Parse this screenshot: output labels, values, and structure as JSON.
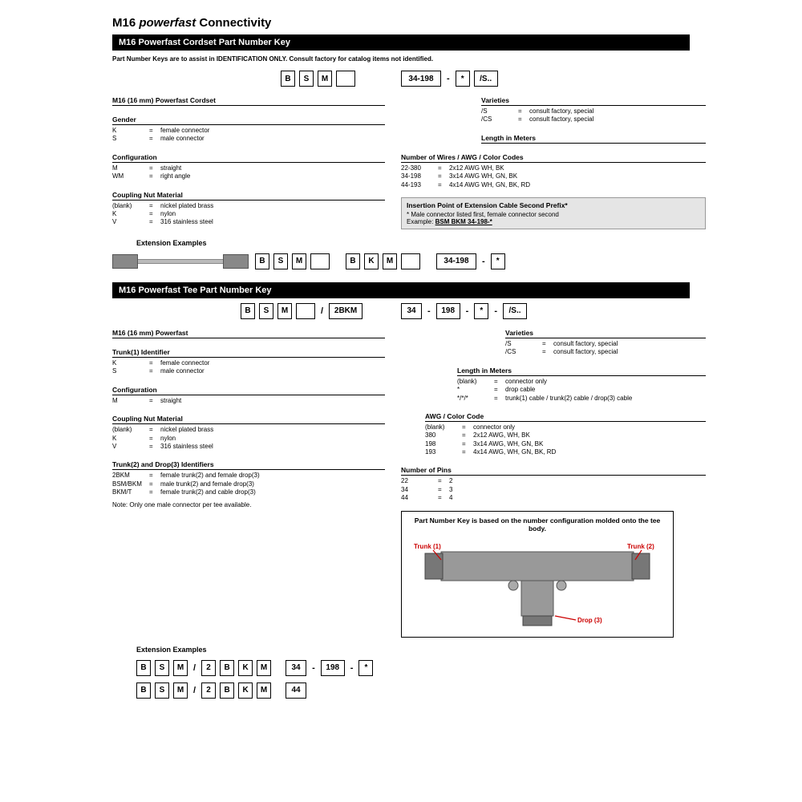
{
  "page_title_prefix": "M16 ",
  "page_title_italic": "powerfast",
  "page_title_suffix": " Connectivity",
  "section1": {
    "title": "M16 Powerfast Cordset Part Number Key",
    "note": "Part Number Keys are to assist in IDENTIFICATION ONLY. Consult factory for catalog items not identified.",
    "boxes": [
      "B",
      "S",
      "M",
      ""
    ],
    "box_mid": "34-198",
    "box_star": "*",
    "box_s": "/S..",
    "left_fields": [
      {
        "title": "M16 (16 mm) Powerfast Cordset",
        "rows": []
      },
      {
        "title": "Gender",
        "rows": [
          {
            "k": "K",
            "v": "female connector"
          },
          {
            "k": "S",
            "v": "male connector"
          }
        ]
      },
      {
        "title": "Configuration",
        "rows": [
          {
            "k": "M",
            "v": "straight"
          },
          {
            "k": "WM",
            "v": "right angle"
          }
        ]
      },
      {
        "title": "Coupling Nut Material",
        "rows": [
          {
            "k": "(blank)",
            "v": "nickel plated brass"
          },
          {
            "k": "K",
            "v": "nylon"
          },
          {
            "k": "V",
            "v": "316 stainless steel"
          }
        ]
      }
    ],
    "right_fields": [
      {
        "title": "Varieties",
        "rows": [
          {
            "k": "/S",
            "v": "consult factory, special"
          },
          {
            "k": "/CS",
            "v": "consult factory, special"
          }
        ]
      },
      {
        "title": "Length in Meters",
        "rows": []
      },
      {
        "title": "Number of Wires / AWG / Color Codes",
        "rows": [
          {
            "k": "22-380",
            "v": "2x12 AWG WH, BK"
          },
          {
            "k": "34-198",
            "v": "3x14 AWG WH, GN, BK"
          },
          {
            "k": "44-193",
            "v": "4x14 AWG WH, GN, BK, RD"
          }
        ]
      }
    ],
    "insertion": {
      "title": "Insertion Point of Extension Cable Second Prefix*",
      "line1": "* Male connector listed first, female connector second",
      "line2_prefix": "Example: ",
      "line2_ex": "BSM BKM 34-198-*"
    },
    "ext_title": "Extension Examples",
    "ext_boxes1": [
      "B",
      "S",
      "M",
      ""
    ],
    "ext_boxes2": [
      "B",
      "K",
      "M",
      ""
    ],
    "ext_mid": "34-198",
    "ext_star": "*"
  },
  "section2": {
    "title": "M16 Powerfast Tee Part Number Key",
    "boxes1": [
      "B",
      "S",
      "M",
      ""
    ],
    "box_2bkm": "2BKM",
    "box_34": "34",
    "box_198": "198",
    "box_star": "*",
    "box_s": "/S..",
    "left_fields": [
      {
        "title": "M16 (16 mm) Powerfast",
        "rows": []
      },
      {
        "title": "Trunk(1) Identifier",
        "rows": [
          {
            "k": "K",
            "v": "female connector"
          },
          {
            "k": "S",
            "v": "male connector"
          }
        ]
      },
      {
        "title": "Configuration",
        "rows": [
          {
            "k": "M",
            "v": "straight"
          }
        ]
      },
      {
        "title": "Coupling Nut Material",
        "rows": [
          {
            "k": "(blank)",
            "v": "nickel plated brass"
          },
          {
            "k": "K",
            "v": "nylon"
          },
          {
            "k": "V",
            "v": "316 stainless steel"
          }
        ]
      },
      {
        "title": "Trunk(2) and Drop(3) Identifiers",
        "rows": [
          {
            "k": "2BKM",
            "v": "female trunk(2) and female drop(3)"
          },
          {
            "k": "BSM/BKM",
            "v": "male trunk(2) and female drop(3)"
          },
          {
            "k": "BKM/T",
            "v": "female trunk(2) and cable drop(3)"
          }
        ]
      }
    ],
    "left_note": "Note: Only one male connector per tee available.",
    "right_fields": [
      {
        "title": "Varieties",
        "rows": [
          {
            "k": "/S",
            "v": "consult factory, special"
          },
          {
            "k": "/CS",
            "v": "consult factory, special"
          }
        ]
      },
      {
        "title": "Length in Meters",
        "rows": [
          {
            "k": "(blank)",
            "v": "connector only"
          },
          {
            "k": "*",
            "v": "drop cable"
          },
          {
            "k": "*/*/*",
            "v": "trunk(1) cable / trunk(2) cable / drop(3) cable"
          }
        ]
      },
      {
        "title": "AWG / Color Code",
        "rows": [
          {
            "k": "(blank)",
            "v": "connector only"
          },
          {
            "k": "380",
            "v": "2x12 AWG, WH, BK"
          },
          {
            "k": "198",
            "v": "3x14 AWG, WH, GN, BK"
          },
          {
            "k": "193",
            "v": "4x14 AWG, WH, GN, BK, RD"
          }
        ]
      },
      {
        "title": "Number of Pins",
        "rows": [
          {
            "k": "22",
            "v": "2"
          },
          {
            "k": "34",
            "v": "3"
          },
          {
            "k": "44",
            "v": "4"
          }
        ]
      }
    ],
    "tee_caption": "Part Number Key is based on the number configuration molded onto the tee body.",
    "tee_labels": {
      "trunk1": "Trunk (1)",
      "trunk2": "Trunk (2)",
      "drop": "Drop (3)"
    },
    "ext_title": "Extension Examples",
    "ext1_a": [
      "B",
      "S",
      "M"
    ],
    "ext1_b": [
      "2",
      "B",
      "K",
      "M"
    ],
    "ext1_c": "34",
    "ext1_d": "198",
    "ext1_e": "*",
    "ext2_a": [
      "B",
      "S",
      "M"
    ],
    "ext2_b": [
      "2",
      "B",
      "K",
      "M"
    ],
    "ext2_c": "44"
  }
}
